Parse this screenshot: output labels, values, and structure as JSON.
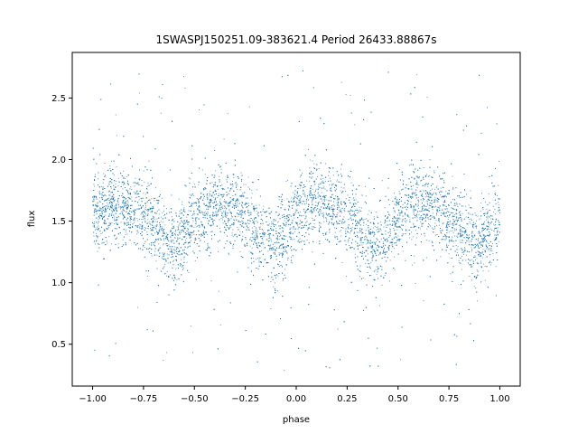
{
  "chart_data": {
    "type": "scatter",
    "title": "1SWASPJ150251.09-383621.4 Period 26433.88867s",
    "xlabel": "phase",
    "ylabel": "flux",
    "xlim": [
      -1.1,
      1.1
    ],
    "ylim": [
      0.16,
      2.87
    ],
    "x_ticks": [
      -1.0,
      -0.75,
      -0.5,
      -0.25,
      0.0,
      0.25,
      0.5,
      0.75,
      1.0
    ],
    "x_tick_labels": [
      "−1.00",
      "−0.75",
      "−0.50",
      "−0.25",
      "0.00",
      "0.25",
      "0.50",
      "0.75",
      "1.00"
    ],
    "y_ticks": [
      0.5,
      1.0,
      1.5,
      2.0,
      2.5
    ],
    "y_tick_labels": [
      "0.5",
      "1.0",
      "1.5",
      "2.0",
      "2.5"
    ],
    "grid": false,
    "marker_color": "#1f77b4",
    "phase_range": [
      -1.0,
      1.0
    ],
    "profile_phase": [
      -1.0,
      -0.9,
      -0.8,
      -0.7,
      -0.6,
      -0.5,
      -0.4,
      -0.3,
      -0.2,
      -0.1,
      0.0,
      0.1,
      0.2,
      0.3,
      0.4,
      0.5,
      0.6,
      0.7,
      0.8,
      0.9,
      1.0
    ],
    "profile_flux": [
      1.55,
      1.64,
      1.62,
      1.48,
      1.28,
      1.5,
      1.64,
      1.6,
      1.42,
      1.3,
      1.55,
      1.66,
      1.62,
      1.48,
      1.28,
      1.5,
      1.64,
      1.6,
      1.42,
      1.3,
      1.55
    ],
    "scatter_width": 0.16,
    "outlier_range": [
      0.28,
      2.75
    ],
    "point_count": 9000
  }
}
